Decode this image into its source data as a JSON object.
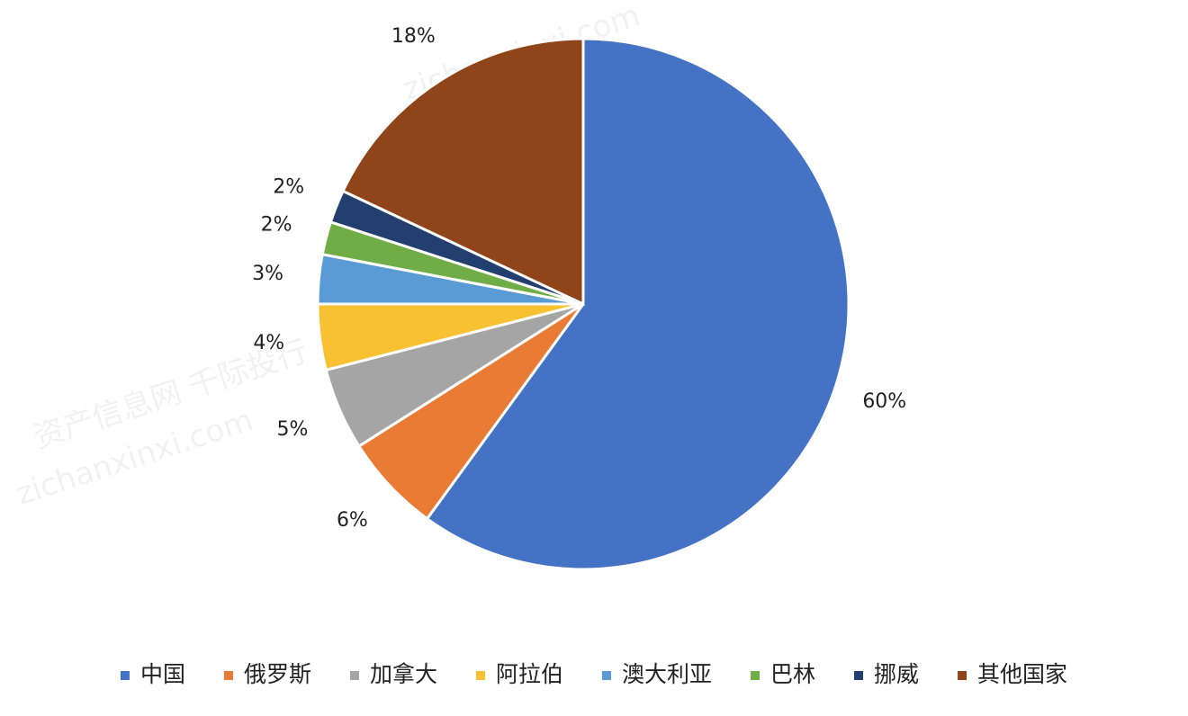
{
  "chart_data": {
    "type": "pie",
    "categories": [
      "中国",
      "俄罗斯",
      "加拿大",
      "阿拉伯",
      "澳大利亚",
      "巴林",
      "挪威",
      "其他国家"
    ],
    "values": [
      60,
      6,
      5,
      4,
      3,
      2,
      2,
      18
    ],
    "value_labels": [
      "60%",
      "6%",
      "5%",
      "4%",
      "3%",
      "2%",
      "2%",
      "18%"
    ],
    "colors": [
      "#4472c4",
      "#e97b34",
      "#a5a5a5",
      "#f7c131",
      "#5b9bd5",
      "#70ad47",
      "#233f70",
      "#8f4419"
    ],
    "legend": "bottom",
    "watermark": [
      "资产信息网 千际投行",
      "zichanxinxi.com"
    ]
  }
}
